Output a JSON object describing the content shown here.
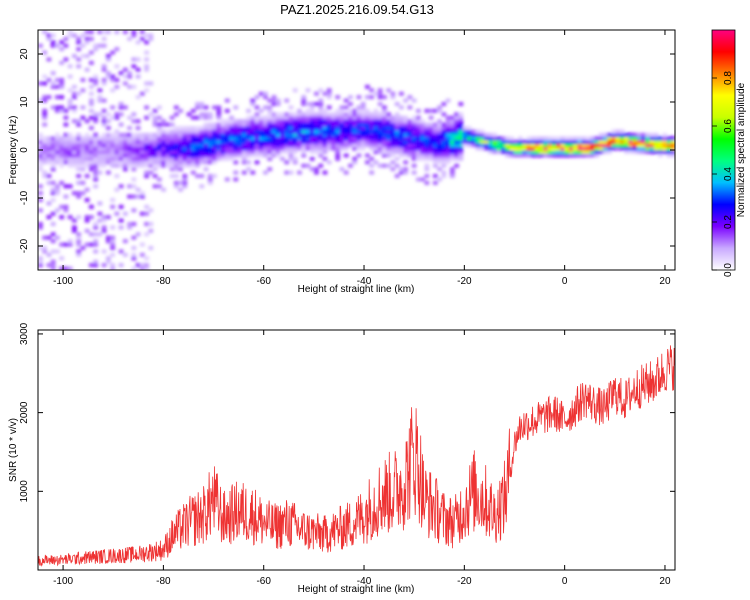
{
  "title": "PAZ1.2025.216.09.54.G13",
  "chart_data": [
    {
      "type": "heatmap",
      "xlabel": "Height of straight line (km)",
      "ylabel": "Frequency (Hz)",
      "xlim": [
        -105,
        22
      ],
      "ylim": [
        -25,
        25
      ],
      "x_ticks": [
        -100,
        -80,
        -60,
        -40,
        -20,
        0,
        20
      ],
      "y_ticks": [
        -20,
        -10,
        0,
        10,
        20
      ],
      "colorbar": {
        "label": "Normalized spectral amplitude",
        "range": [
          0,
          1
        ],
        "ticks": [
          "0.0",
          "0.2",
          "0.4",
          "0.6",
          "0.8"
        ],
        "colors": [
          "#ffffff",
          "#c9a9ff",
          "#7a00ff",
          "#0000ff",
          "#00bfff",
          "#00ff80",
          "#00ff00",
          "#c8ff00",
          "#ffff00",
          "#ff8000",
          "#ff0000",
          "#ff0080"
        ]
      },
      "ridge_frequency_by_height": {
        "x": [
          -90,
          -85,
          -80,
          -75,
          -70,
          -65,
          -60,
          -55,
          -50,
          -45,
          -40,
          -35,
          -30,
          -25,
          -20,
          -15,
          -10,
          -5,
          0,
          5,
          10,
          15,
          20
        ],
        "y": [
          0,
          0,
          0.5,
          0.5,
          1.5,
          2.5,
          3,
          3.5,
          4,
          4,
          4.5,
          3.5,
          2.5,
          1.5,
          3,
          1.5,
          0.5,
          0.5,
          0.5,
          0.5,
          2,
          1.5,
          1
        ],
        "amplitude": [
          0.12,
          0.16,
          0.2,
          0.28,
          0.3,
          0.3,
          0.28,
          0.3,
          0.32,
          0.28,
          0.26,
          0.3,
          0.28,
          0.26,
          0.5,
          0.55,
          0.62,
          0.88,
          0.9,
          0.9,
          0.9,
          0.92,
          0.92
        ]
      }
    },
    {
      "type": "line",
      "xlabel": "Height of straight line (km)",
      "ylabel": "SNR (10 * v/v)",
      "xlim": [
        -105,
        22
      ],
      "ylim": [
        0,
        3050
      ],
      "x_ticks": [
        -100,
        -80,
        -60,
        -40,
        -20,
        0,
        20
      ],
      "y_ticks": [
        1000,
        2000,
        3000
      ],
      "series": [
        {
          "color": "#ee3333",
          "x": [
            -105,
            -100,
            -95,
            -90,
            -85,
            -80,
            -78,
            -75,
            -72,
            -70,
            -68,
            -65,
            -62,
            -60,
            -58,
            -55,
            -52,
            -50,
            -48,
            -45,
            -42,
            -40,
            -38,
            -36,
            -34,
            -32,
            -30,
            -29,
            -28,
            -26,
            -24,
            -22,
            -20,
            -18,
            -16,
            -14,
            -12,
            -11,
            -10,
            -9,
            -8,
            -6,
            -4,
            -2,
            0,
            2,
            4,
            6,
            8,
            10,
            12,
            14,
            16,
            18,
            20,
            22
          ],
          "y": [
            120,
            130,
            160,
            180,
            200,
            260,
            450,
            600,
            700,
            900,
            650,
            750,
            700,
            600,
            550,
            600,
            500,
            480,
            450,
            520,
            600,
            700,
            850,
            950,
            1000,
            1100,
            1500,
            1300,
            900,
            800,
            650,
            600,
            800,
            1000,
            900,
            700,
            900,
            1200,
            1600,
            1800,
            1850,
            1900,
            1950,
            2000,
            1900,
            2050,
            2200,
            2100,
            2050,
            2250,
            2150,
            2300,
            2350,
            2400,
            2550,
            2600
          ]
        }
      ]
    }
  ]
}
